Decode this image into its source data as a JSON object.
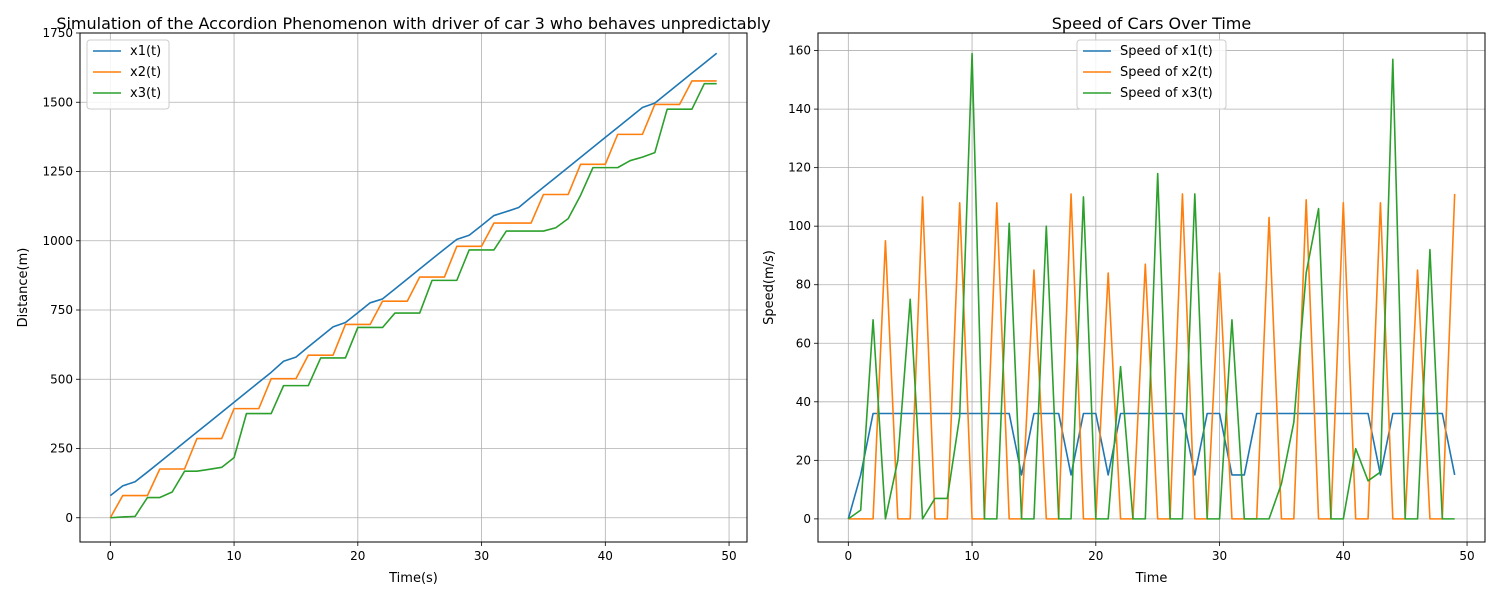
{
  "chart_data": [
    {
      "type": "line",
      "title": "Simulation of the Accordion Phenomenon with driver of car 3 who behaves unpredictably",
      "xlabel": "Time(s)",
      "ylabel": "Distance(m)",
      "xlim": [
        -2.45,
        51.45
      ],
      "ylim": [
        -87.5,
        1750
      ],
      "xticks": [
        0,
        10,
        20,
        30,
        40,
        50
      ],
      "yticks": [
        0,
        250,
        500,
        750,
        1000,
        1250,
        1500,
        1750
      ],
      "grid": true,
      "legend": "upper-left",
      "x": [
        0,
        1,
        2,
        3,
        4,
        5,
        6,
        7,
        8,
        9,
        10,
        11,
        12,
        13,
        14,
        15,
        16,
        17,
        18,
        19,
        20,
        21,
        22,
        23,
        24,
        25,
        26,
        27,
        28,
        29,
        30,
        31,
        32,
        33,
        34,
        35,
        36,
        37,
        38,
        39,
        40,
        41,
        42,
        43,
        44,
        45,
        46,
        47,
        48,
        49
      ],
      "series": [
        {
          "name": "x1(t)",
          "color": "#1f77b4",
          "values": [
            80,
            115,
            130,
            165,
            201,
            237,
            273,
            309,
            345,
            381,
            417,
            453,
            489,
            525,
            565,
            580,
            617,
            653,
            689,
            705,
            740,
            776,
            790,
            826,
            862,
            898,
            934,
            970,
            1005,
            1020,
            1055,
            1091,
            1105,
            1120,
            1157,
            1193,
            1229,
            1265,
            1301,
            1337,
            1373,
            1409,
            1445,
            1481,
            1497,
            1533,
            1569,
            1605,
            1641,
            1677
          ]
        },
        {
          "name": "x2(t)",
          "color": "#ff7f0e",
          "values": [
            0,
            80,
            80,
            80,
            176,
            176,
            176,
            286,
            286,
            286,
            394,
            394,
            394,
            502,
            502,
            502,
            587,
            587,
            587,
            698,
            698,
            698,
            782,
            782,
            782,
            869,
            869,
            869,
            980,
            980,
            980,
            1064,
            1064,
            1064,
            1064,
            1167,
            1167,
            1167,
            1276,
            1276,
            1276,
            1384,
            1384,
            1384,
            1492,
            1492,
            1492,
            1577,
            1577,
            1577
          ]
        },
        {
          "name": "x3(t)",
          "color": "#2ca02c",
          "values": [
            0,
            3,
            5,
            73,
            73,
            93,
            168,
            168,
            175,
            182,
            217,
            376,
            376,
            376,
            477,
            477,
            477,
            577,
            577,
            577,
            687,
            687,
            687,
            739,
            739,
            739,
            857,
            857,
            857,
            967,
            967,
            967,
            1035,
            1035,
            1035,
            1035,
            1047,
            1080,
            1164,
            1264,
            1264,
            1264,
            1289,
            1302,
            1318,
            1475,
            1475,
            1475,
            1567,
            1567
          ]
        }
      ]
    },
    {
      "type": "line",
      "title": "Speed of Cars Over Time",
      "xlabel": "Time",
      "ylabel": "Speed(m/s)",
      "xlim": [
        -2.45,
        51.45
      ],
      "ylim": [
        -7.9,
        166.0
      ],
      "xticks": [
        0,
        10,
        20,
        30,
        40,
        50
      ],
      "yticks": [
        0,
        20,
        40,
        60,
        80,
        100,
        120,
        140,
        160
      ],
      "grid": true,
      "legend": "upper-center",
      "x": [
        0,
        1,
        2,
        3,
        4,
        5,
        6,
        7,
        8,
        9,
        10,
        11,
        12,
        13,
        14,
        15,
        16,
        17,
        18,
        19,
        20,
        21,
        22,
        23,
        24,
        25,
        26,
        27,
        28,
        29,
        30,
        31,
        32,
        33,
        34,
        35,
        36,
        37,
        38,
        39,
        40,
        41,
        42,
        43,
        44,
        45,
        46,
        47,
        48,
        49
      ],
      "series": [
        {
          "name": "Speed of x1(t)",
          "color": "#1f77b4",
          "values": [
            0,
            15,
            36,
            36,
            36,
            36,
            36,
            36,
            36,
            36,
            36,
            36,
            36,
            36,
            15,
            36,
            36,
            36,
            15,
            36,
            36,
            15,
            36,
            36,
            36,
            36,
            36,
            36,
            15,
            36,
            36,
            15,
            15,
            36,
            36,
            36,
            36,
            36,
            36,
            36,
            36,
            36,
            36,
            15,
            36,
            36,
            36,
            36,
            36,
            15
          ]
        },
        {
          "name": "Speed of x2(t)",
          "color": "#ff7f0e",
          "values": [
            0,
            0,
            0,
            95,
            0,
            0,
            110,
            0,
            0,
            108,
            0,
            0,
            108,
            0,
            0,
            85,
            0,
            0,
            111,
            0,
            0,
            84,
            0,
            0,
            87,
            0,
            0,
            111,
            0,
            0,
            84,
            0,
            0,
            0,
            103,
            0,
            0,
            109,
            0,
            0,
            108,
            0,
            0,
            108,
            0,
            0,
            85,
            0,
            0,
            111
          ]
        },
        {
          "name": "Speed of x3(t)",
          "color": "#2ca02c",
          "values": [
            0,
            3,
            68,
            0,
            20,
            75,
            0,
            7,
            7,
            35,
            159,
            0,
            0,
            101,
            0,
            0,
            100,
            0,
            0,
            110,
            0,
            0,
            52,
            0,
            0,
            118,
            0,
            0,
            111,
            0,
            0,
            68,
            0,
            0,
            0,
            12,
            33,
            84,
            106,
            0,
            0,
            24,
            13,
            16,
            157,
            0,
            0,
            92,
            0,
            0
          ]
        }
      ]
    }
  ]
}
